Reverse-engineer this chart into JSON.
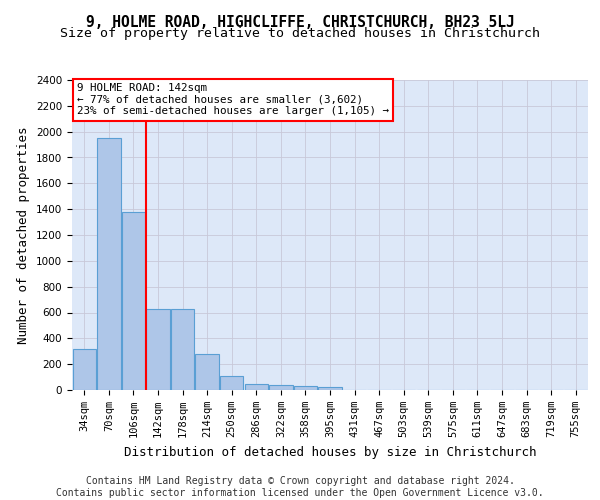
{
  "title_line1": "9, HOLME ROAD, HIGHCLIFFE, CHRISTCHURCH, BH23 5LJ",
  "title_line2": "Size of property relative to detached houses in Christchurch",
  "xlabel": "Distribution of detached houses by size in Christchurch",
  "ylabel": "Number of detached properties",
  "footer_line1": "Contains HM Land Registry data © Crown copyright and database right 2024.",
  "footer_line2": "Contains public sector information licensed under the Open Government Licence v3.0.",
  "annotation_line1": "9 HOLME ROAD: 142sqm",
  "annotation_line2": "← 77% of detached houses are smaller (3,602)",
  "annotation_line3": "23% of semi-detached houses are larger (1,105) →",
  "bar_categories": [
    "34sqm",
    "70sqm",
    "106sqm",
    "142sqm",
    "178sqm",
    "214sqm",
    "250sqm",
    "286sqm",
    "322sqm",
    "358sqm",
    "395sqm",
    "431sqm",
    "467sqm",
    "503sqm",
    "539sqm",
    "575sqm",
    "611sqm",
    "647sqm",
    "683sqm",
    "719sqm",
    "755sqm"
  ],
  "bar_values": [
    320,
    1950,
    1380,
    630,
    630,
    280,
    105,
    50,
    35,
    30,
    20,
    0,
    0,
    0,
    0,
    0,
    0,
    0,
    0,
    0,
    0
  ],
  "bar_color": "#aec6e8",
  "bar_edge_color": "#5a9fd4",
  "vline_x": 2.5,
  "vline_color": "red",
  "ylim": [
    0,
    2400
  ],
  "yticks": [
    0,
    200,
    400,
    600,
    800,
    1000,
    1200,
    1400,
    1600,
    1800,
    2000,
    2200,
    2400
  ],
  "grid_color": "#c8c8d8",
  "bg_color": "#dde8f8",
  "annotation_box_facecolor": "white",
  "annotation_box_edgecolor": "red",
  "title_fontsize": 10.5,
  "subtitle_fontsize": 9.5,
  "axis_label_fontsize": 9,
  "tick_fontsize": 7.5,
  "footer_fontsize": 7
}
